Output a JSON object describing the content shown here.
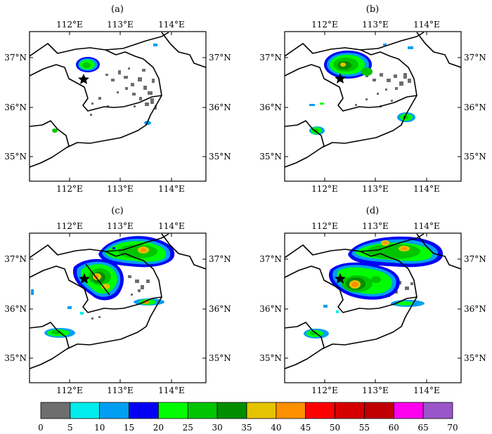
{
  "panels": [
    {
      "label": "(a)"
    },
    {
      "label": "(b)"
    },
    {
      "label": "(c)"
    },
    {
      "label": "(d)"
    }
  ],
  "axes": {
    "lon_ticks": [
      "112°E",
      "113°E",
      "114°E"
    ],
    "lat_ticks": [
      "37°N",
      "36°N",
      "35°N"
    ]
  },
  "colorbar": {
    "ticks": [
      "0",
      "5",
      "10",
      "15",
      "20",
      "25",
      "30",
      "35",
      "40",
      "45",
      "50",
      "55",
      "60",
      "65",
      "70"
    ],
    "colors": [
      "#6e6e6e",
      "#00ecec",
      "#019ff4",
      "#0300f4",
      "#02fd02",
      "#01c501",
      "#008e00",
      "#e6c300",
      "#ff9000",
      "#ff0000",
      "#d60000",
      "#c00000",
      "#ff00f0",
      "#9955c9"
    ]
  },
  "marker": {
    "symbol": "star"
  }
}
